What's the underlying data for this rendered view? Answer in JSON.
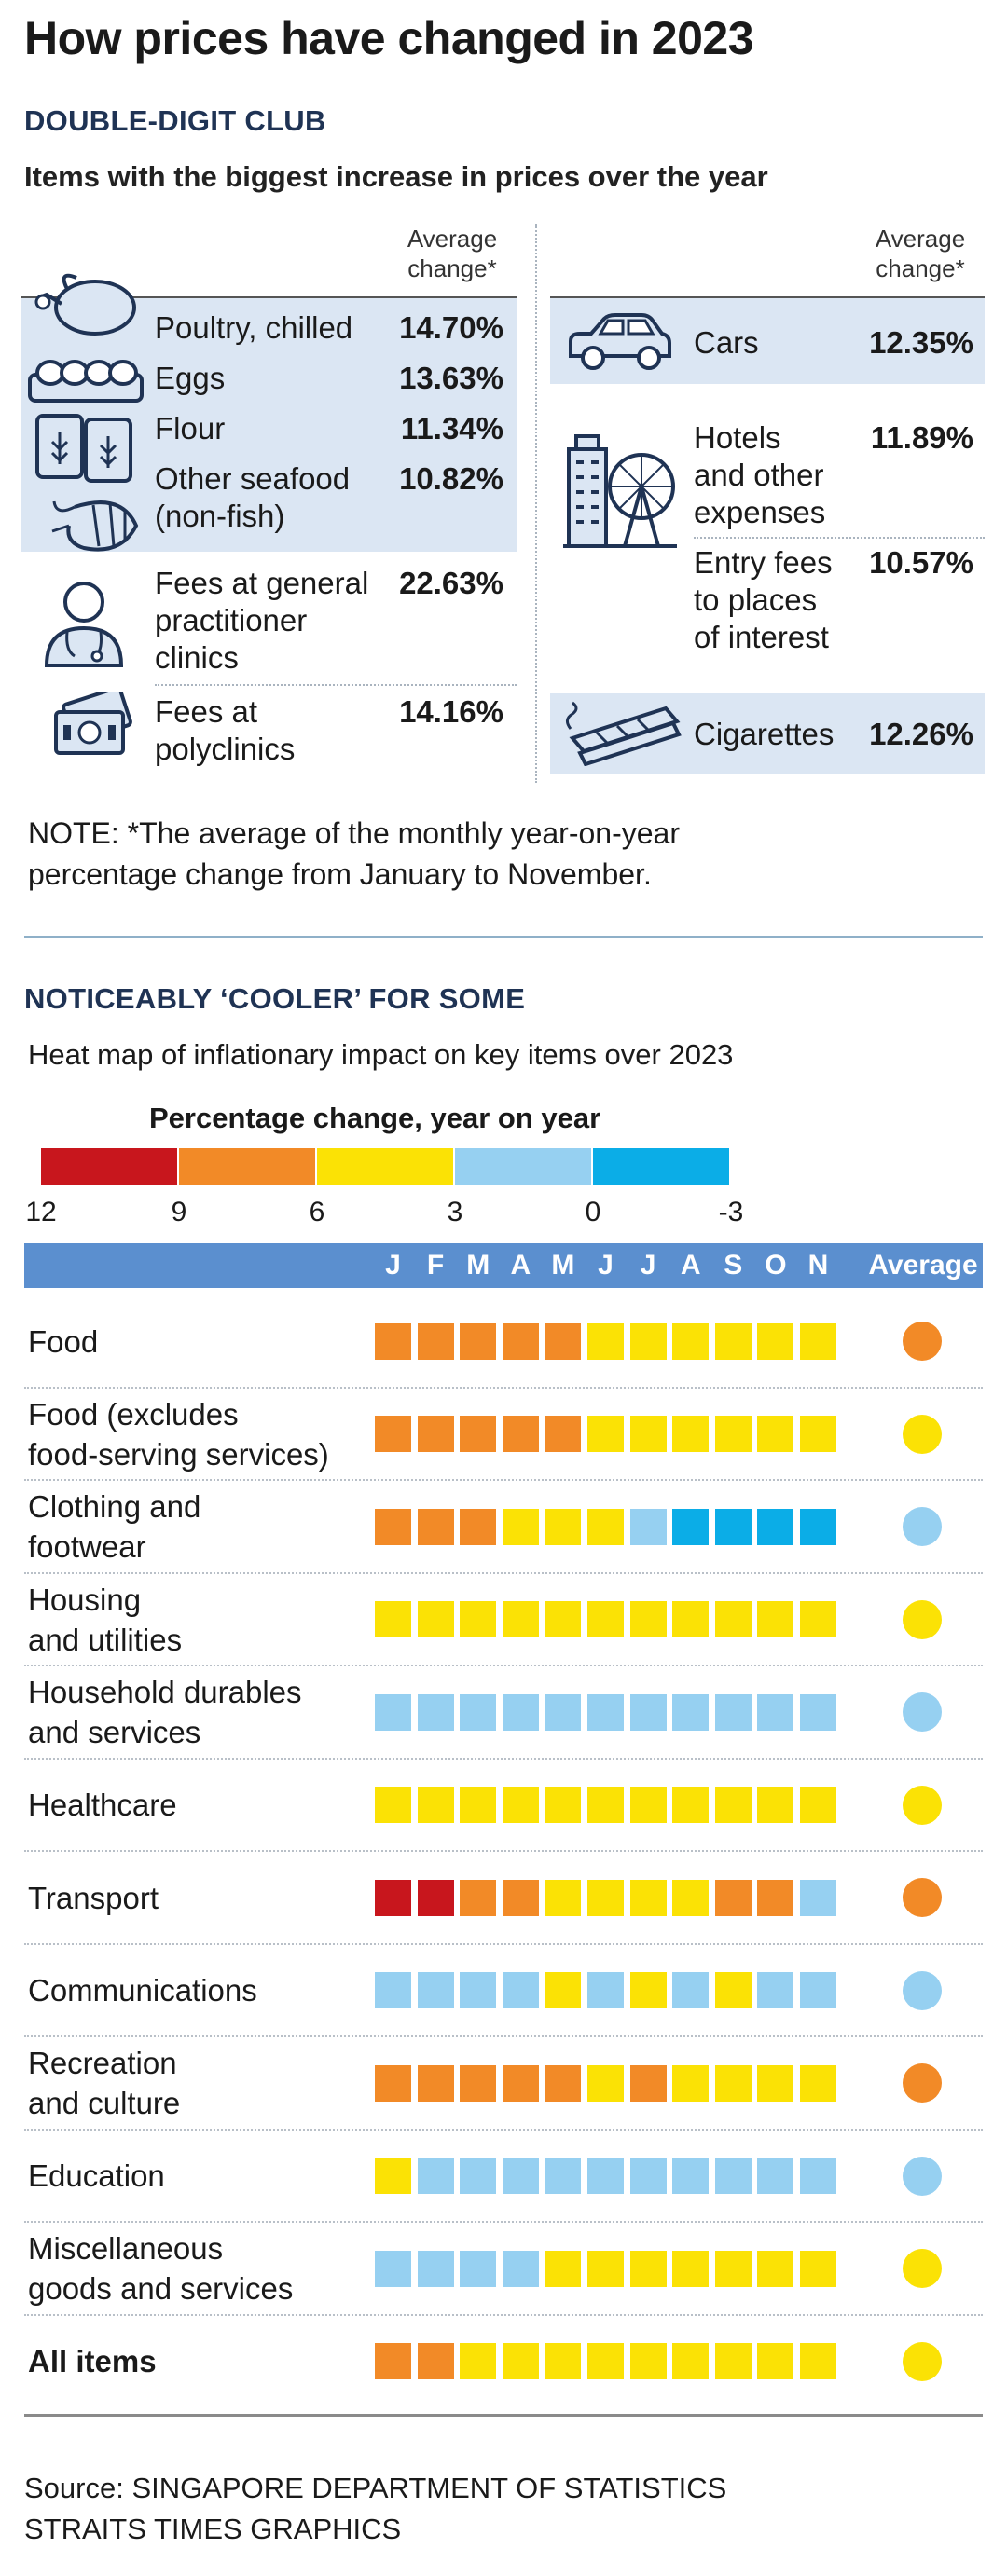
{
  "title": "How prices have changed in 2023",
  "section1": {
    "heading": "DOUBLE-DIGIT CLUB",
    "subheading": "Items with the biggest increase in prices over the year",
    "avg_header": [
      "Average",
      "change*"
    ],
    "left_items": [
      {
        "label": [
          "Poultry, chilled"
        ],
        "value": "14.70%"
      },
      {
        "label": [
          "Eggs"
        ],
        "value": "13.63%"
      },
      {
        "label": [
          "Flour"
        ],
        "value": "11.34%"
      },
      {
        "label": [
          "Other seafood",
          "(non-fish)"
        ],
        "value": "10.82%"
      },
      {
        "label": [
          "Fees at general",
          "practitioner",
          "clinics"
        ],
        "value": "22.63%"
      },
      {
        "label": [
          "Fees at",
          "polyclinics"
        ],
        "value": "14.16%"
      }
    ],
    "right_items": [
      {
        "label": [
          "Cars"
        ],
        "value": "12.35%"
      },
      {
        "label": [
          "Hotels",
          "and other",
          "expenses"
        ],
        "value": "11.89%"
      },
      {
        "label": [
          "Entry fees",
          "to places",
          "of interest"
        ],
        "value": "10.57%"
      },
      {
        "label": [
          "Cigarettes"
        ],
        "value": "12.26%"
      }
    ],
    "icons": [
      "poultry-icon",
      "eggs-icon",
      "flour-icon",
      "seafood-icon",
      "doctor-icon",
      "money-icon",
      "car-icon",
      "hotel-ferris-wheel-icon",
      "cigarettes-icon"
    ],
    "note": [
      "NOTE: *The average of the monthly year-on-year",
      "percentage change from January to November."
    ]
  },
  "section2": {
    "heading": "NOTICEABLY ‘COOLER’ FOR SOME",
    "subheading": "Heat map of inflationary impact on key items over 2023",
    "legend_title": "Percentage change, year on year",
    "legend_ticks": [
      "12",
      "9",
      "6",
      "3",
      "0",
      "-3"
    ],
    "legend_colors": [
      "#c8161d",
      "#f28a27",
      "#fbe205",
      "#96d0f1",
      "#0bade7"
    ]
  },
  "chart_data": {
    "type": "heatmap",
    "title": "Heat map of inflationary impact on key items over 2023",
    "legend_title": "Percentage change, year on year",
    "scale": [
      {
        "range": "9 to 12",
        "color": "#c8161d"
      },
      {
        "range": "6 to 9",
        "color": "#f28a27"
      },
      {
        "range": "3 to 6",
        "color": "#fbe205"
      },
      {
        "range": "0 to 3",
        "color": "#96d0f1"
      },
      {
        "range": "-3 to 0",
        "color": "#0bade7"
      }
    ],
    "categories_code": {
      "R": "9 to 12",
      "O": "6 to 9",
      "Y": "3 to 6",
      "L": "0 to 3",
      "B": "-3 to 0"
    },
    "months": [
      "J",
      "F",
      "M",
      "A",
      "M",
      "J",
      "J",
      "A",
      "S",
      "O",
      "N"
    ],
    "average_label": "Average",
    "rows": [
      {
        "label": [
          "Food"
        ],
        "cells": [
          "O",
          "O",
          "O",
          "O",
          "O",
          "Y",
          "Y",
          "Y",
          "Y",
          "Y",
          "Y"
        ],
        "average": "O"
      },
      {
        "label": [
          "Food (excludes",
          "food-serving services)"
        ],
        "cells": [
          "O",
          "O",
          "O",
          "O",
          "O",
          "Y",
          "Y",
          "Y",
          "Y",
          "Y",
          "Y"
        ],
        "average": "Y"
      },
      {
        "label": [
          "Clothing and",
          "footwear"
        ],
        "cells": [
          "O",
          "O",
          "O",
          "Y",
          "Y",
          "Y",
          "L",
          "B",
          "B",
          "B",
          "B"
        ],
        "average": "L"
      },
      {
        "label": [
          "Housing",
          "and utilities"
        ],
        "cells": [
          "Y",
          "Y",
          "Y",
          "Y",
          "Y",
          "Y",
          "Y",
          "Y",
          "Y",
          "Y",
          "Y"
        ],
        "average": "Y"
      },
      {
        "label": [
          "Household durables",
          "and services"
        ],
        "cells": [
          "L",
          "L",
          "L",
          "L",
          "L",
          "L",
          "L",
          "L",
          "L",
          "L",
          "L"
        ],
        "average": "L"
      },
      {
        "label": [
          "Healthcare"
        ],
        "cells": [
          "Y",
          "Y",
          "Y",
          "Y",
          "Y",
          "Y",
          "Y",
          "Y",
          "Y",
          "Y",
          "Y"
        ],
        "average": "Y"
      },
      {
        "label": [
          "Transport"
        ],
        "cells": [
          "R",
          "R",
          "O",
          "O",
          "Y",
          "Y",
          "Y",
          "Y",
          "O",
          "O",
          "L"
        ],
        "average": "O"
      },
      {
        "label": [
          "Communications"
        ],
        "cells": [
          "L",
          "L",
          "L",
          "L",
          "Y",
          "L",
          "Y",
          "L",
          "Y",
          "L",
          "L"
        ],
        "average": "L"
      },
      {
        "label": [
          "Recreation",
          "and culture"
        ],
        "cells": [
          "O",
          "O",
          "O",
          "O",
          "O",
          "Y",
          "O",
          "Y",
          "Y",
          "Y",
          "Y"
        ],
        "average": "O"
      },
      {
        "label": [
          "Education"
        ],
        "cells": [
          "Y",
          "L",
          "L",
          "L",
          "L",
          "L",
          "L",
          "L",
          "L",
          "L",
          "L"
        ],
        "average": "L"
      },
      {
        "label": [
          "Miscellaneous",
          "goods and services"
        ],
        "cells": [
          "L",
          "L",
          "L",
          "L",
          "Y",
          "Y",
          "Y",
          "Y",
          "Y",
          "Y",
          "Y"
        ],
        "average": "Y"
      },
      {
        "label": [
          "All items"
        ],
        "cells": [
          "O",
          "O",
          "Y",
          "Y",
          "Y",
          "Y",
          "Y",
          "Y",
          "Y",
          "Y",
          "Y"
        ],
        "average": "Y",
        "bold": true
      }
    ]
  },
  "source": [
    "Source: SINGAPORE DEPARTMENT OF STATISTICS",
    "STRAITS TIMES GRAPHICS"
  ]
}
